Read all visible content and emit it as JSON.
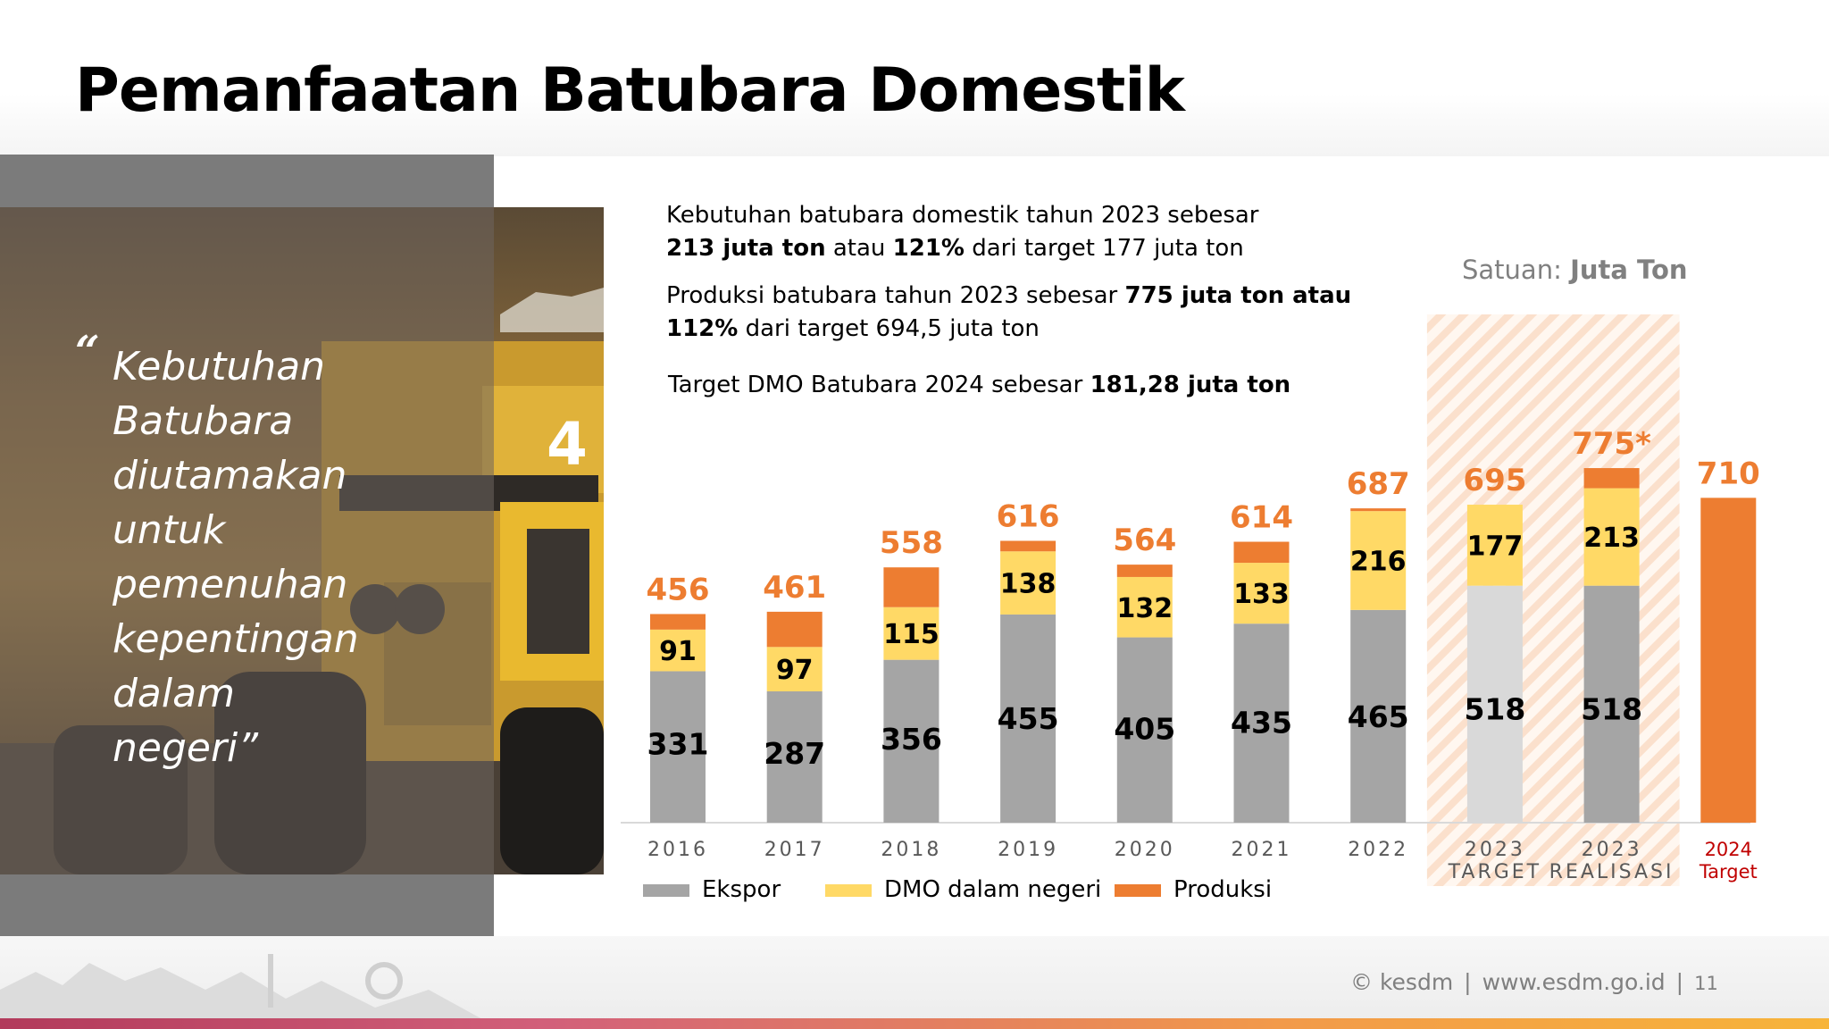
{
  "title": "Pemanfaatan Batubara Domestik",
  "quote": {
    "mark": "“",
    "lines": [
      "Kebutuhan",
      "Batubara",
      "diutamakan",
      "untuk",
      "pemenuhan",
      "kepentingan",
      "dalam",
      "negeri”"
    ]
  },
  "notes": {
    "n1_line1": "Kebutuhan batubara domestik tahun 2023 sebesar",
    "n1_bold1": "213 juta ton",
    "n1_mid": " atau ",
    "n1_bold2": "121%",
    "n1_end": " dari target 177 juta ton",
    "n2_start": "Produksi batubara tahun 2023 sebesar ",
    "n2_bold1": "775 juta ton atau",
    "n2_bold2": "112%",
    "n2_end": " dari target 694,5 juta ton",
    "n3_start": "Target DMO Batubara 2024 sebesar ",
    "n3_bold": "181,28 juta ton"
  },
  "unit": {
    "label": "Satuan: ",
    "value": "Juta Ton"
  },
  "footer": {
    "brand": "kesdm",
    "url": "www.esdm.go.id",
    "page": "11",
    "sep": "|"
  },
  "photo_label": "4",
  "colors": {
    "ekspor": "#a5a5a5",
    "ekspor_target": "#d9d9d9",
    "dmo": "#ffd966",
    "produksi": "#ed7d31",
    "total_label": "#ed7d31",
    "target_2024_label": "#c00000",
    "axis_text": "#595959"
  },
  "chart_data": {
    "type": "bar",
    "stacked": true,
    "categories": [
      {
        "label": "2016",
        "sub": ""
      },
      {
        "label": "2017",
        "sub": ""
      },
      {
        "label": "2018",
        "sub": ""
      },
      {
        "label": "2019",
        "sub": ""
      },
      {
        "label": "2020",
        "sub": ""
      },
      {
        "label": "2021",
        "sub": ""
      },
      {
        "label": "2022",
        "sub": ""
      },
      {
        "label": "2023",
        "sub": "TARGET"
      },
      {
        "label": "2023",
        "sub": "REALISASI"
      },
      {
        "label": "2024",
        "sub": "Target"
      }
    ],
    "series": [
      {
        "name": "Ekspor",
        "values": [
          331,
          287,
          356,
          455,
          405,
          435,
          465,
          518,
          518,
          null
        ]
      },
      {
        "name": "DMO dalam negeri",
        "values": [
          91,
          97,
          115,
          138,
          132,
          133,
          216,
          177,
          213,
          null
        ]
      },
      {
        "name": "Produksi",
        "values": [
          34,
          77,
          87,
          23,
          27,
          46,
          6,
          0,
          44,
          710
        ]
      }
    ],
    "totals": [
      "456",
      "461",
      "558",
      "616",
      "564",
      "614",
      "687",
      "695",
      "775*",
      "710"
    ],
    "ylim": [
      0,
      800
    ],
    "legend_position": "bottom-left",
    "highlighted_categories": [
      7,
      8
    ]
  }
}
